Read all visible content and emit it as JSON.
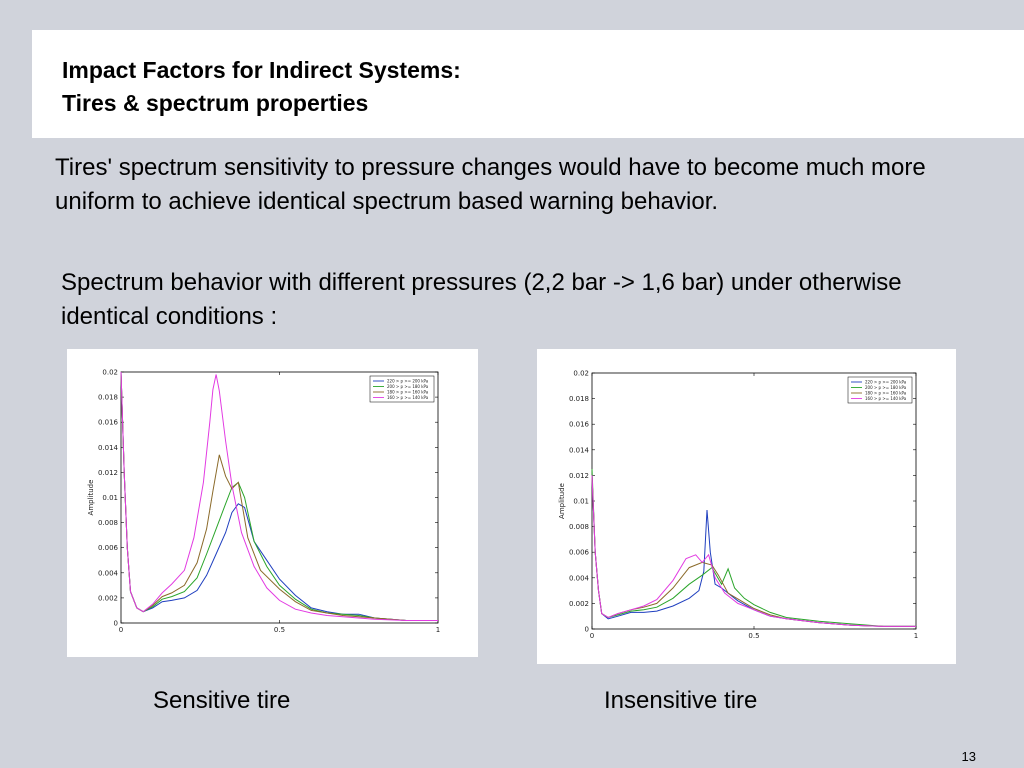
{
  "slide": {
    "title_line1": "Impact Factors for Indirect Systems:",
    "title_line2": "Tires & spectrum properties",
    "paragraph1": "Tires' spectrum sensitivity to pressure changes would have to become much more uniform to achieve identical spectrum based warning behavior.",
    "paragraph2": "Spectrum behavior with different pressures (2,2 bar -> 1,6 bar) under otherwise identical conditions :",
    "caption_left": "Sensitive tire",
    "caption_right": "Insensitive tire",
    "page_number": "13"
  },
  "chart_data": [
    {
      "type": "line",
      "ylabel": "Amplitude",
      "xlim": [
        0,
        1
      ],
      "ylim": [
        0,
        0.02
      ],
      "xticks": [
        "0",
        "0.5",
        "1"
      ],
      "xtick_values": [
        0,
        0.5,
        1
      ],
      "yticks": [
        "0",
        "0.002",
        "0.004",
        "0.006",
        "0.008",
        "0.01",
        "0.012",
        "0.014",
        "0.016",
        "0.018",
        "0.02"
      ],
      "ytick_values": [
        0,
        0.002,
        0.004,
        0.006,
        0.008,
        0.01,
        0.012,
        0.014,
        0.016,
        0.018,
        0.02
      ],
      "legend_position": "top-right",
      "series": [
        {
          "name": "220 > p >= 200 kPa",
          "color": "#1f3fbf",
          "x": [
            0,
            0.01,
            0.02,
            0.03,
            0.05,
            0.07,
            0.1,
            0.13,
            0.16,
            0.2,
            0.24,
            0.27,
            0.3,
            0.33,
            0.35,
            0.37,
            0.39,
            0.42,
            0.46,
            0.5,
            0.55,
            0.6,
            0.65,
            0.7,
            0.75,
            0.8,
            0.9,
            1.0
          ],
          "y": [
            0.02,
            0.012,
            0.006,
            0.0025,
            0.0012,
            0.0009,
            0.0012,
            0.0017,
            0.0018,
            0.002,
            0.0026,
            0.0038,
            0.0055,
            0.0072,
            0.0088,
            0.0095,
            0.0092,
            0.0065,
            0.005,
            0.0035,
            0.0022,
            0.0012,
            0.0009,
            0.0007,
            0.0007,
            0.0004,
            0.0002,
            0.0002
          ]
        },
        {
          "name": "200 > p >= 180 kPa",
          "color": "#2aa52a",
          "x": [
            0,
            0.01,
            0.02,
            0.03,
            0.05,
            0.07,
            0.1,
            0.13,
            0.16,
            0.2,
            0.24,
            0.27,
            0.3,
            0.33,
            0.35,
            0.37,
            0.39,
            0.42,
            0.46,
            0.5,
            0.55,
            0.6,
            0.65,
            0.7,
            0.75,
            0.8,
            0.9,
            1.0
          ],
          "y": [
            0.02,
            0.012,
            0.006,
            0.0025,
            0.0012,
            0.0009,
            0.0013,
            0.0019,
            0.0021,
            0.0025,
            0.0036,
            0.0055,
            0.0075,
            0.0095,
            0.0108,
            0.0112,
            0.01,
            0.0065,
            0.0045,
            0.003,
            0.0019,
            0.0011,
            0.0008,
            0.0007,
            0.0006,
            0.0004,
            0.0002,
            0.0002
          ]
        },
        {
          "name": "180 > p >= 160 kPa",
          "color": "#8b6a2a",
          "x": [
            0,
            0.01,
            0.02,
            0.03,
            0.05,
            0.07,
            0.1,
            0.13,
            0.16,
            0.2,
            0.24,
            0.27,
            0.29,
            0.31,
            0.33,
            0.35,
            0.37,
            0.4,
            0.44,
            0.5,
            0.55,
            0.6,
            0.65,
            0.7,
            0.75,
            0.8,
            0.9,
            1.0
          ],
          "y": [
            0.02,
            0.012,
            0.006,
            0.0025,
            0.0012,
            0.0009,
            0.0014,
            0.0021,
            0.0024,
            0.003,
            0.0048,
            0.0075,
            0.0105,
            0.0134,
            0.0117,
            0.0107,
            0.0112,
            0.0068,
            0.0042,
            0.0027,
            0.0017,
            0.001,
            0.0008,
            0.0006,
            0.0005,
            0.0004,
            0.0002,
            0.0002
          ]
        },
        {
          "name": "160 > p >= 140 kPa",
          "color": "#e23be2",
          "x": [
            0,
            0.01,
            0.02,
            0.03,
            0.05,
            0.07,
            0.1,
            0.13,
            0.16,
            0.2,
            0.23,
            0.26,
            0.28,
            0.29,
            0.3,
            0.31,
            0.33,
            0.35,
            0.38,
            0.42,
            0.46,
            0.5,
            0.55,
            0.6,
            0.65,
            0.7,
            0.8,
            0.9,
            1.0
          ],
          "y": [
            0.02,
            0.012,
            0.006,
            0.0025,
            0.0012,
            0.0009,
            0.0015,
            0.0024,
            0.0031,
            0.0042,
            0.0068,
            0.0112,
            0.016,
            0.0186,
            0.0198,
            0.0185,
            0.0145,
            0.011,
            0.0072,
            0.0045,
            0.0028,
            0.0018,
            0.0011,
            0.0008,
            0.0006,
            0.0005,
            0.0003,
            0.0002,
            0.0002
          ]
        }
      ]
    },
    {
      "type": "line",
      "ylabel": "Amplitude",
      "xlim": [
        0,
        1
      ],
      "ylim": [
        0,
        0.02
      ],
      "xticks": [
        "0",
        "0.5",
        "1"
      ],
      "xtick_values": [
        0,
        0.5,
        1
      ],
      "yticks": [
        "0",
        "0.002",
        "0.004",
        "0.006",
        "0.008",
        "0.01",
        "0.012",
        "0.014",
        "0.016",
        "0.018",
        "0.02"
      ],
      "ytick_values": [
        0,
        0.002,
        0.004,
        0.006,
        0.008,
        0.01,
        0.012,
        0.014,
        0.016,
        0.018,
        0.02
      ],
      "legend_position": "top-right",
      "series": [
        {
          "name": "220 > p >= 200 kPa",
          "color": "#1f3fbf",
          "x": [
            0,
            0.01,
            0.02,
            0.03,
            0.05,
            0.08,
            0.12,
            0.16,
            0.2,
            0.25,
            0.3,
            0.33,
            0.345,
            0.355,
            0.365,
            0.38,
            0.4,
            0.45,
            0.5,
            0.55,
            0.6,
            0.7,
            0.8,
            0.9,
            1.0
          ],
          "y": [
            0.012,
            0.006,
            0.003,
            0.0012,
            0.0008,
            0.001,
            0.0013,
            0.0013,
            0.0014,
            0.0018,
            0.0024,
            0.003,
            0.0045,
            0.0093,
            0.006,
            0.0035,
            0.0032,
            0.0022,
            0.0015,
            0.001,
            0.0008,
            0.0005,
            0.0003,
            0.0002,
            0.0002
          ]
        },
        {
          "name": "200 > p >= 180 kPa",
          "color": "#2aa52a",
          "x": [
            0,
            0.01,
            0.02,
            0.03,
            0.05,
            0.08,
            0.12,
            0.16,
            0.2,
            0.25,
            0.3,
            0.34,
            0.37,
            0.4,
            0.42,
            0.44,
            0.47,
            0.5,
            0.55,
            0.6,
            0.7,
            0.8,
            0.9,
            1.0
          ],
          "y": [
            0.0125,
            0.006,
            0.003,
            0.0012,
            0.0009,
            0.0011,
            0.0014,
            0.0015,
            0.0017,
            0.0024,
            0.0035,
            0.0042,
            0.0048,
            0.0035,
            0.0047,
            0.0032,
            0.0024,
            0.0019,
            0.0013,
            0.0009,
            0.0006,
            0.0004,
            0.0002,
            0.0002
          ]
        },
        {
          "name": "180 > p >= 160 kPa",
          "color": "#8b6a2a",
          "x": [
            0,
            0.01,
            0.02,
            0.03,
            0.05,
            0.08,
            0.12,
            0.16,
            0.2,
            0.25,
            0.3,
            0.34,
            0.37,
            0.39,
            0.42,
            0.46,
            0.5,
            0.55,
            0.6,
            0.7,
            0.8,
            0.9,
            1.0
          ],
          "y": [
            0.012,
            0.006,
            0.003,
            0.0012,
            0.0009,
            0.0012,
            0.0015,
            0.0017,
            0.002,
            0.0032,
            0.0048,
            0.0052,
            0.005,
            0.0042,
            0.0028,
            0.0022,
            0.0016,
            0.0011,
            0.0008,
            0.0005,
            0.0003,
            0.0002,
            0.0002
          ]
        },
        {
          "name": "160 > p >= 140 kPa",
          "color": "#e23be2",
          "x": [
            0,
            0.01,
            0.02,
            0.03,
            0.05,
            0.08,
            0.12,
            0.16,
            0.2,
            0.25,
            0.29,
            0.32,
            0.34,
            0.36,
            0.38,
            0.41,
            0.45,
            0.5,
            0.55,
            0.6,
            0.7,
            0.8,
            0.9,
            1.0
          ],
          "y": [
            0.012,
            0.006,
            0.003,
            0.0012,
            0.0009,
            0.0012,
            0.0015,
            0.0018,
            0.0023,
            0.0038,
            0.0055,
            0.0058,
            0.0052,
            0.0058,
            0.004,
            0.0028,
            0.002,
            0.0015,
            0.001,
            0.0008,
            0.0005,
            0.0003,
            0.0002,
            0.0002
          ]
        }
      ]
    }
  ]
}
